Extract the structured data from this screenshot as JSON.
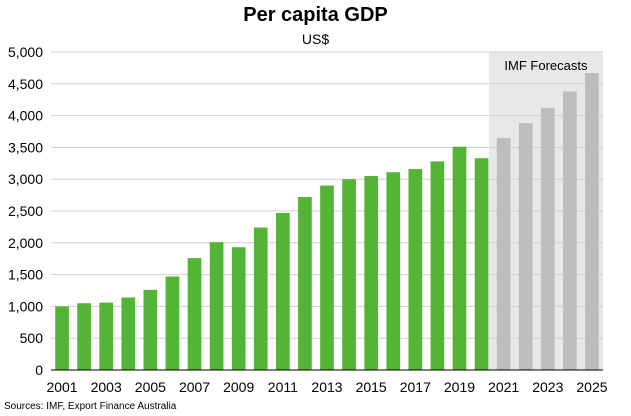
{
  "chart_data": {
    "type": "bar",
    "title": "Per capita GDP",
    "subtitle": "US$",
    "xlabel": "",
    "ylabel": "",
    "ylim": [
      0,
      5000
    ],
    "yticks": [
      0,
      500,
      1000,
      1500,
      2000,
      2500,
      3000,
      3500,
      4000,
      4500,
      5000
    ],
    "ytick_labels": [
      "0",
      "500",
      "1,000",
      "1,500",
      "2,000",
      "2,500",
      "3,000",
      "3,500",
      "4,000",
      "4,500",
      "5,000"
    ],
    "categories": [
      "2001",
      "2002",
      "2003",
      "2004",
      "2005",
      "2006",
      "2007",
      "2008",
      "2009",
      "2010",
      "2011",
      "2012",
      "2013",
      "2014",
      "2015",
      "2016",
      "2017",
      "2018",
      "2019",
      "2020",
      "2021",
      "2022",
      "2023",
      "2024",
      "2025"
    ],
    "xtick_labels": [
      "2001",
      "2003",
      "2005",
      "2007",
      "2009",
      "2011",
      "2013",
      "2015",
      "2017",
      "2019",
      "2021",
      "2023",
      "2025"
    ],
    "values": [
      1000,
      1050,
      1060,
      1140,
      1260,
      1470,
      1760,
      2010,
      1930,
      2240,
      2470,
      2720,
      2900,
      3000,
      3050,
      3110,
      3160,
      3280,
      3510,
      3330,
      3650,
      3880,
      4120,
      4380,
      4670
    ],
    "forecast_start_index": 20,
    "annotation": "IMF Forecasts",
    "grid": true,
    "legend": "none",
    "colors": {
      "actual": "#54b435",
      "forecast": "#bdbdbd",
      "forecast_region": "#e8e8e8",
      "gridline": "#d0d0d0"
    }
  },
  "source": "Sources: IMF, Export Finance Australia"
}
